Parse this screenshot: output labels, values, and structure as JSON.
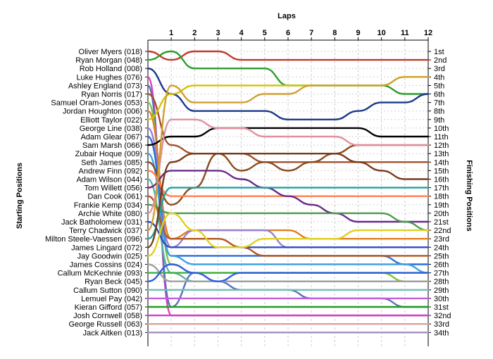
{
  "chart_data": {
    "type": "line",
    "title": "",
    "xlabel": "Laps",
    "ylabel_left": "Starting Positions",
    "ylabel_right": "Finishing Positions",
    "laps": [
      1,
      2,
      3,
      4,
      5,
      6,
      7,
      8,
      9,
      10,
      11,
      12
    ],
    "position_labels": [
      "1st",
      "2nd",
      "3rd",
      "4th",
      "5th",
      "6th",
      "7th",
      "8th",
      "9th",
      "10th",
      "11th",
      "12th",
      "13th",
      "14th",
      "15th",
      "16th",
      "17th",
      "18th",
      "19th",
      "20th",
      "21st",
      "22nd",
      "23rd",
      "24th",
      "25th",
      "26th",
      "27th",
      "28th",
      "29th",
      "30th",
      "31st",
      "32nd",
      "33rd",
      "34th"
    ],
    "grid": true,
    "series": [
      {
        "name": "Oliver Myers (018)",
        "color": "#c0392b",
        "positions": [
          1,
          2,
          1,
          1,
          2,
          2,
          2,
          2,
          2,
          2,
          2,
          2,
          2
        ]
      },
      {
        "name": "Ryan Morgan (048)",
        "color": "#2a9d2a",
        "positions": [
          2,
          1,
          3,
          3,
          3,
          3,
          5,
          5,
          5,
          5,
          5,
          6,
          6
        ]
      },
      {
        "name": "Rob Holland (008)",
        "color": "#1a3a8a",
        "positions": [
          3,
          6,
          8,
          8,
          8,
          8,
          9,
          9,
          9,
          8,
          7,
          7,
          6
        ]
      },
      {
        "name": "Luke Hughes (076)",
        "color": "#e040c0",
        "positions": [
          4,
          32,
          32,
          32,
          32,
          32,
          32,
          32,
          32,
          32,
          32,
          32,
          32
        ]
      },
      {
        "name": "Ashley England (073)",
        "color": "#5b6fbf",
        "positions": [
          5,
          31,
          27,
          28,
          29,
          29,
          29,
          30,
          30,
          30,
          30,
          31,
          31
        ]
      },
      {
        "name": "Ryan Norris (017)",
        "color": "#a0522d",
        "positions": [
          6,
          12,
          13,
          13,
          13,
          14,
          14,
          14,
          14,
          14,
          14,
          14,
          14
        ]
      },
      {
        "name": "Samuel Oram-Jones (053)",
        "color": "#7fbf3f",
        "positions": [
          7,
          26,
          27,
          27,
          27,
          27,
          27,
          27,
          27,
          27,
          27,
          28,
          28
        ]
      },
      {
        "name": "Jordan Houghton (006)",
        "color": "#e08020",
        "positions": [
          8,
          23,
          22,
          22,
          22,
          22,
          22,
          23,
          23,
          23,
          23,
          23,
          23
        ]
      },
      {
        "name": "Elliott Taylor (022)",
        "color": "#d4c400",
        "positions": [
          9,
          6,
          5,
          5,
          5,
          5,
          5,
          5,
          5,
          5,
          5,
          4,
          4
        ]
      },
      {
        "name": "George Line (038)",
        "color": "#9a7fd4",
        "positions": [
          10,
          24,
          22,
          22,
          22,
          22,
          24,
          24,
          24,
          24,
          24,
          24,
          24
        ]
      },
      {
        "name": "Adam Glear (067)",
        "color": "#2b6fd9",
        "positions": [
          11,
          25,
          25,
          25,
          25,
          25,
          25,
          25,
          25,
          25,
          25,
          26,
          26
        ]
      },
      {
        "name": "Sam Marsh (066)",
        "color": "#000000",
        "positions": [
          12,
          11,
          11,
          10,
          10,
          10,
          10,
          10,
          10,
          10,
          11,
          11,
          11
        ]
      },
      {
        "name": "Zubair Hoque (009)",
        "color": "#40a0e0",
        "positions": [
          13,
          25,
          26,
          26,
          26,
          26,
          26,
          26,
          26,
          26,
          26,
          26,
          27
        ]
      },
      {
        "name": "Seth James (085)",
        "color": "#8b4a1a",
        "positions": [
          14,
          19,
          17,
          13,
          15,
          14,
          15,
          14,
          13,
          12,
          12,
          12,
          12
        ]
      },
      {
        "name": "Andrew Finn (092)",
        "color": "#ff7f50",
        "positions": [
          15,
          18,
          18,
          18,
          18,
          18,
          18,
          18,
          18,
          18,
          18,
          18,
          18
        ]
      },
      {
        "name": "Adam Wilson (044)",
        "color": "#5ab0a0",
        "positions": [
          16,
          27,
          28,
          28,
          28,
          28,
          28,
          28,
          28,
          28,
          28,
          28,
          28
        ]
      },
      {
        "name": "Tom Willett (056)",
        "color": "#6a2a8a",
        "positions": [
          17,
          15,
          15,
          15,
          16,
          17,
          18,
          19,
          20,
          21,
          21,
          21,
          21
        ]
      },
      {
        "name": "Dan Cook (061)",
        "color": "#b05820",
        "positions": [
          18,
          23,
          23,
          23,
          24,
          25,
          25,
          25,
          25,
          25,
          25,
          25,
          25
        ]
      },
      {
        "name": "Frankie Kemp (034)",
        "color": "#4a9a4a",
        "positions": [
          19,
          20,
          20,
          20,
          20,
          20,
          20,
          20,
          20,
          20,
          20,
          21,
          22
        ]
      },
      {
        "name": "Archie White (080)",
        "color": "#e090a0",
        "positions": [
          20,
          9,
          9,
          10,
          10,
          11,
          11,
          11,
          11,
          12,
          12,
          12,
          12
        ]
      },
      {
        "name": "Jack Batholomew (031)",
        "color": "#3050c0",
        "positions": [
          21,
          24,
          24,
          24,
          24,
          24,
          24,
          24,
          24,
          24,
          24,
          24,
          24
        ]
      },
      {
        "name": "Terry Chadwick (037)",
        "color": "#d0a030",
        "positions": [
          22,
          5,
          7,
          7,
          7,
          6,
          6,
          5,
          5,
          5,
          5,
          4,
          4
        ]
      },
      {
        "name": "Milton Steele-Vaessen (096)",
        "color": "#20a0a0",
        "positions": [
          23,
          17,
          17,
          17,
          17,
          17,
          17,
          17,
          17,
          17,
          17,
          17,
          17
        ]
      },
      {
        "name": "James Lingard (072)",
        "color": "#7a3a1a",
        "positions": [
          24,
          14,
          13,
          13,
          13,
          13,
          13,
          13,
          13,
          14,
          15,
          16,
          16
        ]
      },
      {
        "name": "Jay Goodwin (025)",
        "color": "#e0d020",
        "positions": [
          25,
          20,
          22,
          24,
          24,
          23,
          23,
          23,
          23,
          22,
          22,
          22,
          22
        ]
      },
      {
        "name": "James Cossins (024)",
        "color": "#a0a0a0",
        "positions": [
          26,
          28,
          28,
          28,
          28,
          28,
          28,
          28,
          28,
          28,
          28,
          28,
          28
        ]
      },
      {
        "name": "Callum McKechnie (093)",
        "color": "#40b040",
        "positions": [
          27,
          27,
          27,
          27,
          27,
          27,
          27,
          27,
          27,
          27,
          27,
          27,
          27
        ]
      },
      {
        "name": "Ryan Beck (045)",
        "color": "#3060e0",
        "positions": [
          28,
          26,
          27,
          28,
          27,
          27,
          27,
          27,
          27,
          27,
          27,
          27,
          27
        ]
      },
      {
        "name": "Callum Sutton (090)",
        "color": "#70c0b0",
        "positions": [
          29,
          29,
          29,
          29,
          29,
          29,
          29,
          29,
          29,
          29,
          29,
          29,
          29
        ]
      },
      {
        "name": "Lemuel Pay (042)",
        "color": "#c060e0",
        "positions": [
          30,
          30,
          30,
          30,
          30,
          30,
          30,
          30,
          30,
          30,
          30,
          30,
          30
        ]
      },
      {
        "name": "Kieran Gifford (057)",
        "color": "#20a020",
        "positions": [
          31,
          31,
          31,
          31,
          31,
          31,
          31,
          31,
          31,
          31,
          31,
          31,
          31
        ]
      },
      {
        "name": "Josh Cornwell (058)",
        "color": "#d040c0",
        "positions": [
          32,
          32,
          32,
          32,
          32,
          32,
          32,
          32,
          32,
          32,
          32,
          32,
          32
        ]
      },
      {
        "name": "George Russell (063)",
        "color": "#e0a0a0",
        "positions": [
          33,
          33,
          33,
          33,
          33,
          33,
          33,
          33,
          33,
          33,
          33,
          33,
          33
        ]
      },
      {
        "name": "Jack Aitken (013)",
        "color": "#a090c0",
        "positions": [
          34,
          34,
          34,
          34,
          34,
          34,
          34,
          34,
          34,
          34,
          34,
          34,
          34
        ]
      }
    ]
  }
}
